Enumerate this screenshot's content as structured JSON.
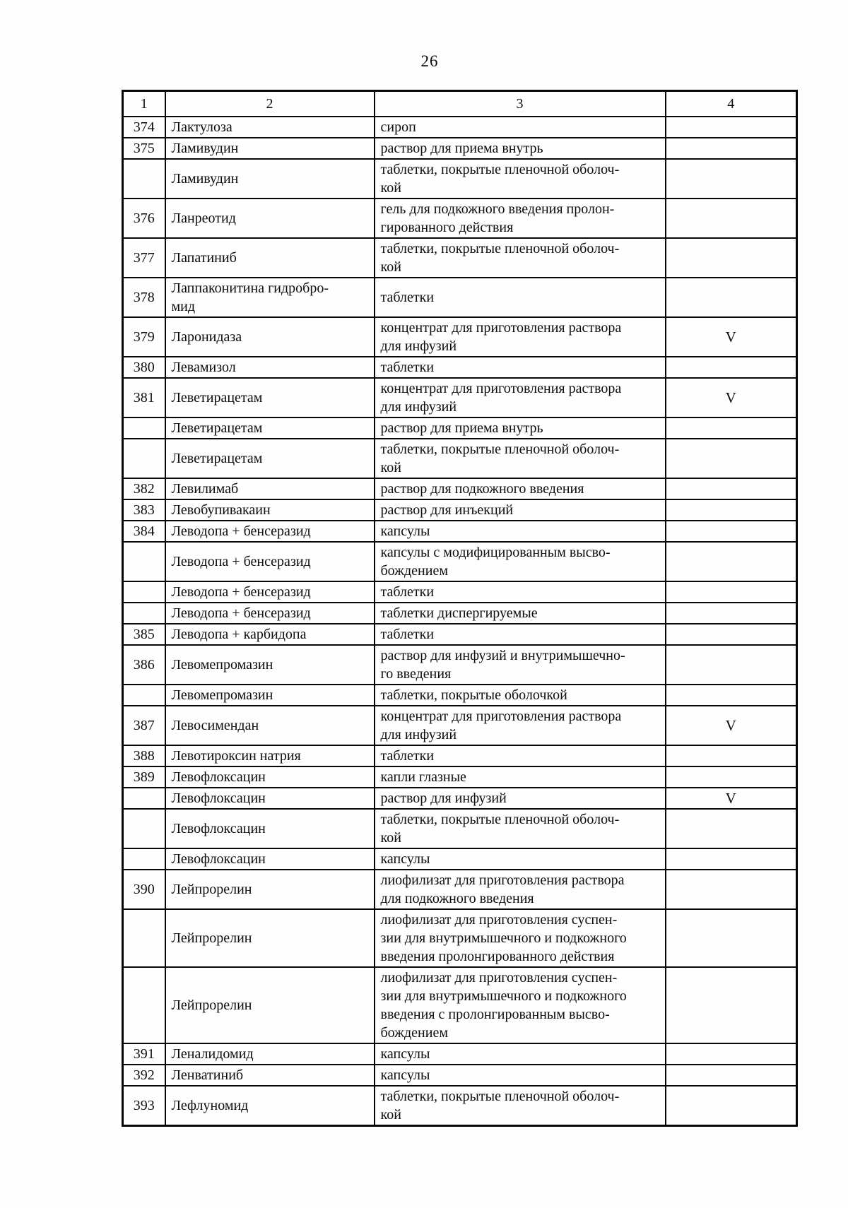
{
  "page": {
    "number": "26"
  },
  "table": {
    "headers": [
      "1",
      "2",
      "3",
      "4"
    ],
    "rows": [
      {
        "num": "374",
        "name": "Лактулоза",
        "form": "сироп",
        "mark": ""
      },
      {
        "num": "375",
        "name": "Ламивудин",
        "form": "раствор для приема внутрь",
        "mark": ""
      },
      {
        "num": "",
        "name": "Ламивудин",
        "form": "таблетки, покрытые пленочной оболоч-\nкой",
        "mark": ""
      },
      {
        "num": "376",
        "name": "Ланреотид",
        "form": "гель для подкожного введения пролон-\nгированного действия",
        "mark": ""
      },
      {
        "num": "377",
        "name": "Лапатиниб",
        "form": "таблетки, покрытые пленочной оболоч-\nкой",
        "mark": ""
      },
      {
        "num": "378",
        "name": "Лаппаконитина гидробро-\nмид",
        "form": "таблетки",
        "mark": ""
      },
      {
        "num": "379",
        "name": "Ларонидаза",
        "form": "концентрат для приготовления раствора\nдля инфузий",
        "mark": "V"
      },
      {
        "num": "380",
        "name": "Левамизол",
        "form": "таблетки",
        "mark": ""
      },
      {
        "num": "381",
        "name": "Леветирацетам",
        "form": "концентрат для приготовления раствора\nдля инфузий",
        "mark": "V"
      },
      {
        "num": "",
        "name": "Леветирацетам",
        "form": "раствор для приема внутрь",
        "mark": ""
      },
      {
        "num": "",
        "name": "Леветирацетам",
        "form": "таблетки, покрытые пленочной оболоч-\nкой",
        "mark": ""
      },
      {
        "num": "382",
        "name": "Левилимаб",
        "form": "раствор для подкожного введения",
        "mark": ""
      },
      {
        "num": "383",
        "name": "Левобупивакаин",
        "form": "раствор для инъекций",
        "mark": ""
      },
      {
        "num": "384",
        "name": "Леводопа + бенсеразид",
        "form": "капсулы",
        "mark": ""
      },
      {
        "num": "",
        "name": "Леводопа + бенсеразид",
        "form": "капсулы с модифицированным высво-\nбождением",
        "mark": ""
      },
      {
        "num": "",
        "name": "Леводопа + бенсеразид",
        "form": "таблетки",
        "mark": ""
      },
      {
        "num": "",
        "name": "Леводопа + бенсеразид",
        "form": "таблетки диспергируемые",
        "mark": ""
      },
      {
        "num": "385",
        "name": "Леводопа + карбидопа",
        "form": "таблетки",
        "mark": ""
      },
      {
        "num": "386",
        "name": "Левомепромазин",
        "form": "раствор для инфузий и внутримышечно-\nго введения",
        "mark": ""
      },
      {
        "num": "",
        "name": "Левомепромазин",
        "form": "таблетки, покрытые оболочкой",
        "mark": ""
      },
      {
        "num": "387",
        "name": "Левосимендан",
        "form": "концентрат для приготовления раствора\nдля инфузий",
        "mark": "V"
      },
      {
        "num": "388",
        "name": "Левотироксин натрия",
        "form": "таблетки",
        "mark": ""
      },
      {
        "num": "389",
        "name": "Левофлоксацин",
        "form": "капли глазные",
        "mark": ""
      },
      {
        "num": "",
        "name": "Левофлоксацин",
        "form": "раствор для инфузий",
        "mark": "V"
      },
      {
        "num": "",
        "name": "Левофлоксацин",
        "form": "таблетки, покрытые пленочной оболоч-\nкой",
        "mark": ""
      },
      {
        "num": "",
        "name": "Левофлоксацин",
        "form": "капсулы",
        "mark": ""
      },
      {
        "num": "390",
        "name": "Лейпрорелин",
        "form": "лиофилизат для приготовления раствора\nдля подкожного введения",
        "mark": ""
      },
      {
        "num": "",
        "name": "Лейпрорелин",
        "form": "лиофилизат для приготовления суспен-\nзии для внутримышечного и подкожного\nвведения пролонгированного действия",
        "mark": ""
      },
      {
        "num": "",
        "name": "Лейпрорелин",
        "form": "лиофилизат для приготовления суспен-\nзии для внутримышечного и подкожного\nвведения с пролонгированным высво-\nбождением",
        "mark": ""
      },
      {
        "num": "391",
        "name": "Леналидомид",
        "form": "капсулы",
        "mark": ""
      },
      {
        "num": "392",
        "name": "Ленватиниб",
        "form": "капсулы",
        "mark": ""
      },
      {
        "num": "393",
        "name": "Лефлуномид",
        "form": "таблетки, покрытые пленочной оболоч-\nкой",
        "mark": ""
      }
    ]
  }
}
